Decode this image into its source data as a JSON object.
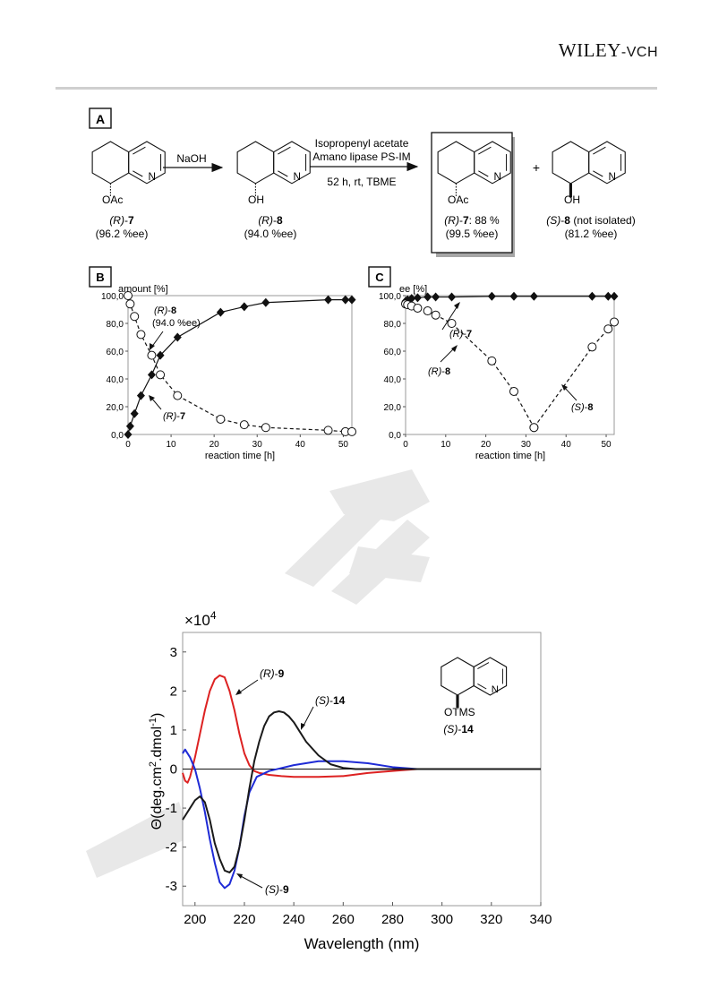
{
  "publisher": {
    "brand": "WILEY",
    "suffix": "-VCH"
  },
  "colors": {
    "red": "#dd2222",
    "blue": "#1f2bd6",
    "black": "#1a1a1a",
    "watermark": "#e2e2e2"
  },
  "scheme": {
    "panel_label": "A",
    "arrow1_label": "NaOH",
    "arrow2_line1": "Isopropenyl acetate",
    "arrow2_line2": "Amano lipase PS-IM",
    "arrow2_line3": "52 h, rt, TBME",
    "plus": "+",
    "compounds": [
      {
        "substituent": "OAc",
        "n_atom": "N",
        "config": "(R)",
        "number": "7",
        "note": "(96.2 %ee)"
      },
      {
        "substituent": "OH",
        "n_atom": "N",
        "config": "(R)",
        "number": "8",
        "note": "(94.0 %ee)"
      },
      {
        "substituent": "OAc",
        "n_atom": "N",
        "config": "(R)",
        "number": "7",
        "suffix": ": 88 %",
        "note": "(99.5 %ee)"
      },
      {
        "substituent": "OH",
        "n_atom": "N",
        "config": "(S)",
        "number": "8",
        "suffix": " (not isolated)",
        "note": "(81.2 %ee)"
      }
    ]
  },
  "chart_data": [
    {
      "panel": "B",
      "type": "line",
      "ylabel": "amount [%]",
      "xlabel": "reaction time [h]",
      "xlim": [
        0,
        52
      ],
      "ylim": [
        0,
        100
      ],
      "xticks": [
        0,
        10,
        20,
        30,
        40,
        50
      ],
      "yticks": [
        "0,0",
        "20,0",
        "40,0",
        "60,0",
        "80,0",
        "100,0"
      ],
      "series": [
        {
          "name": "(R)-7",
          "marker": "diamond",
          "line": "solid",
          "x": [
            0,
            0.5,
            1.5,
            3,
            5.5,
            7.5,
            11.5,
            21.5,
            27,
            32,
            46.5,
            50.5,
            52
          ],
          "y": [
            0,
            6,
            15,
            28,
            43,
            57,
            70,
            88,
            92,
            95,
            97,
            97,
            97
          ]
        },
        {
          "name": "(R)-8",
          "marker": "circle",
          "line": "dashed",
          "x": [
            0,
            0.5,
            1.5,
            3,
            5.5,
            7.5,
            11.5,
            21.5,
            27,
            32,
            46.5,
            50.5,
            52
          ],
          "y": [
            100,
            94,
            85,
            72,
            57,
            43,
            28,
            11,
            7,
            5,
            3,
            2,
            2
          ]
        }
      ],
      "annotations": [
        {
          "config": "(R)",
          "number": "8",
          "note": "(94.0 %ee)"
        },
        {
          "config": "(R)",
          "number": "7"
        }
      ]
    },
    {
      "panel": "C",
      "type": "line",
      "ylabel": "ee [%]",
      "xlabel": "reaction time [h]",
      "xlim": [
        0,
        52
      ],
      "ylim": [
        0,
        100
      ],
      "xticks": [
        0,
        10,
        20,
        30,
        40,
        50
      ],
      "yticks": [
        "0,0",
        "20,0",
        "40,0",
        "60,0",
        "80,0",
        "100,0"
      ],
      "series": [
        {
          "name": "(R)-7",
          "marker": "diamond",
          "line": "solid",
          "x": [
            0,
            0.5,
            1.5,
            3,
            5.5,
            7.5,
            11.5,
            21.5,
            27,
            32,
            46.5,
            50.5,
            52
          ],
          "y": [
            96,
            97,
            98,
            98.5,
            99,
            99,
            99,
            99.5,
            99.5,
            99.5,
            99.5,
            99.5,
            99.5
          ]
        },
        {
          "name": "(R)-8",
          "marker": "circle",
          "line": "dashed",
          "x": [
            0,
            0.5,
            1.5,
            3,
            5.5,
            7.5,
            11.5,
            21.5,
            27,
            32
          ],
          "y": [
            94,
            93.5,
            92.5,
            91,
            89,
            86,
            80,
            53,
            31,
            5
          ]
        },
        {
          "name": "(S)-8",
          "marker": "circle",
          "line": "dashed",
          "x": [
            32,
            46.5,
            50.5,
            52
          ],
          "y": [
            5,
            63,
            76,
            81
          ]
        }
      ],
      "annotations": [
        {
          "config": "(R)",
          "number": "7"
        },
        {
          "config": "(R)",
          "number": "8"
        },
        {
          "config": "(S)",
          "number": "8"
        }
      ]
    },
    {
      "panel": "CD",
      "type": "line",
      "scale_label": "×10",
      "scale_exponent": "4",
      "ylabel_main": "Θ(deg.cm",
      "ylabel_sup1": "2",
      "ylabel_mid": ".dmol",
      "ylabel_sup2": "-1",
      "ylabel_end": ")",
      "xlabel": "Wavelength (nm)",
      "xlim": [
        195,
        340
      ],
      "ylim": [
        -3.5,
        3.5
      ],
      "xticks": [
        "200",
        "220",
        "240",
        "260",
        "280",
        "300",
        "320",
        "340"
      ],
      "yticks": [
        "3",
        "2",
        "1",
        "0",
        "-1",
        "-2",
        "-3"
      ],
      "series": [
        {
          "name": "(R)-9",
          "color": "red",
          "x": [
            195,
            196,
            197,
            198,
            200,
            202,
            204,
            206,
            208,
            210,
            212,
            214,
            216,
            218,
            220,
            222,
            224,
            226,
            228,
            230,
            235,
            240,
            250,
            260,
            270,
            280,
            290,
            340
          ],
          "y": [
            -0.1,
            -0.3,
            -0.35,
            -0.2,
            0.3,
            0.9,
            1.5,
            2.0,
            2.3,
            2.4,
            2.35,
            2.0,
            1.5,
            0.9,
            0.4,
            0.1,
            -0.05,
            -0.1,
            -0.12,
            -0.15,
            -0.18,
            -0.2,
            -0.2,
            -0.18,
            -0.1,
            -0.05,
            0,
            0
          ]
        },
        {
          "name": "(S)-9",
          "color": "blue",
          "x": [
            195,
            196,
            197,
            198,
            200,
            202,
            204,
            206,
            208,
            210,
            212,
            214,
            216,
            218,
            220,
            222,
            225,
            230,
            240,
            250,
            260,
            270,
            280,
            290,
            340
          ],
          "y": [
            0.4,
            0.5,
            0.4,
            0.3,
            0.0,
            -0.5,
            -1.1,
            -1.8,
            -2.4,
            -2.9,
            -3.05,
            -2.95,
            -2.6,
            -2.0,
            -1.2,
            -0.6,
            -0.2,
            -0.05,
            0.1,
            0.2,
            0.2,
            0.15,
            0.05,
            0,
            0
          ]
        },
        {
          "name": "(S)-14",
          "color": "black",
          "x": [
            195,
            198,
            200,
            202,
            204,
            206,
            208,
            210,
            212,
            214,
            216,
            218,
            220,
            222,
            224,
            226,
            228,
            230,
            232,
            234,
            236,
            238,
            240,
            242,
            245,
            250,
            255,
            260,
            265,
            270,
            280,
            290,
            340
          ],
          "y": [
            -1.3,
            -1.0,
            -0.8,
            -0.7,
            -0.85,
            -1.3,
            -1.9,
            -2.3,
            -2.6,
            -2.65,
            -2.5,
            -2.0,
            -1.3,
            -0.5,
            0.2,
            0.7,
            1.1,
            1.35,
            1.45,
            1.48,
            1.45,
            1.35,
            1.2,
            1.0,
            0.7,
            0.35,
            0.12,
            0.03,
            0.0,
            0.0,
            0.0,
            0.0,
            0.0
          ]
        }
      ],
      "annotations": [
        {
          "config": "(R)",
          "number": "9"
        },
        {
          "config": "(S)",
          "number": "14"
        },
        {
          "config": "(S)",
          "number": "9"
        }
      ],
      "structure": {
        "substituent": "OTMS",
        "n_atom": "N",
        "config": "(S)",
        "number": "14"
      }
    }
  ]
}
